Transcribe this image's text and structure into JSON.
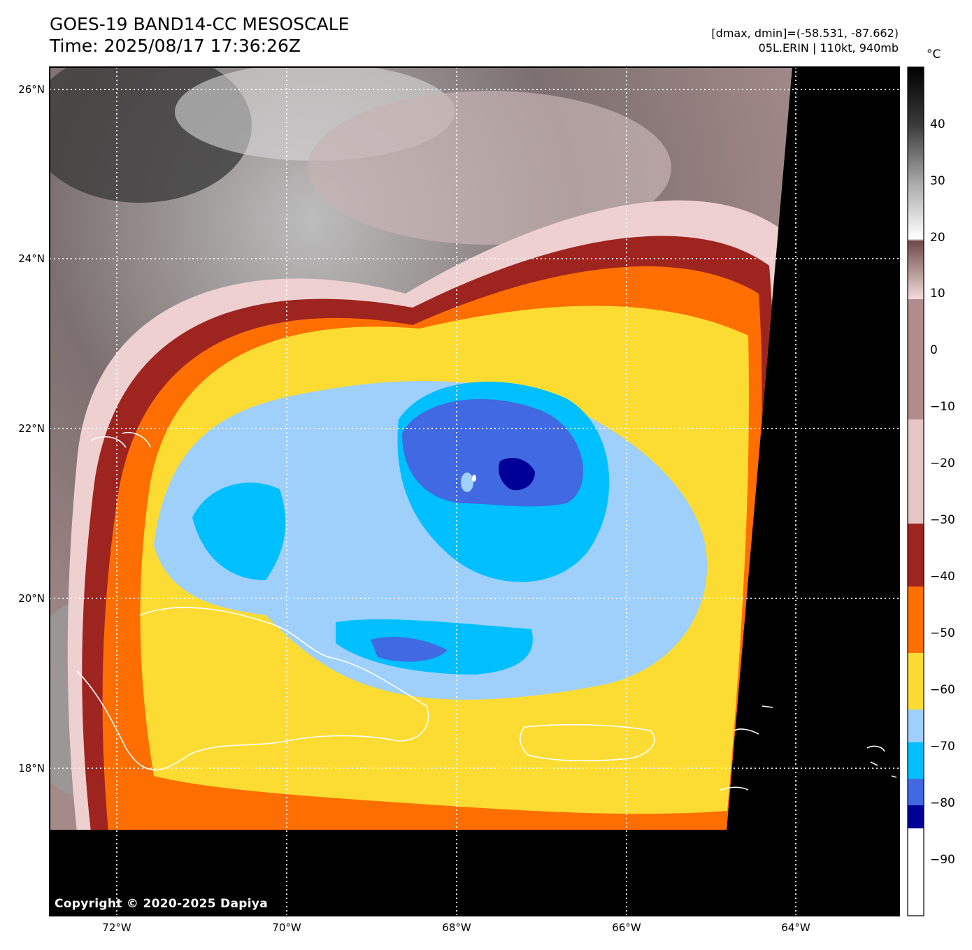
{
  "header": {
    "title": "GOES-19 BAND14-CC MESOSCALE",
    "time": "Time: 2025/08/17 17:36:26Z",
    "range": "[dmax, dmin]=(-58.531, -87.662)",
    "storm": "05L.ERIN | 110kt, 940mb"
  },
  "map": {
    "lat_labels": [
      "26°N",
      "24°N",
      "22°N",
      "20°N",
      "18°N"
    ],
    "lon_labels": [
      "72°W",
      "70°W",
      "68°W",
      "66°W",
      "64°W"
    ],
    "copyright": "Copyright © 2020-2025 Dapiya"
  },
  "colorbar": {
    "unit": "°C",
    "tick_labels": [
      "40",
      "30",
      "20",
      "10",
      "0",
      "−10",
      "−20",
      "−30",
      "−40",
      "−50",
      "−60",
      "−70",
      "−80",
      "−90"
    ],
    "colors": {
      "warm_gray": "#000000",
      "pink": "#efd0d0",
      "dark_red": "#9e2420",
      "orange": "#ff6e00",
      "yellow": "#fcdc32",
      "light_blue": "#9fd0fb",
      "cyan": "#00bfff",
      "blue": "#4169e1",
      "navy": "#000099",
      "white": "#ffffff"
    }
  }
}
